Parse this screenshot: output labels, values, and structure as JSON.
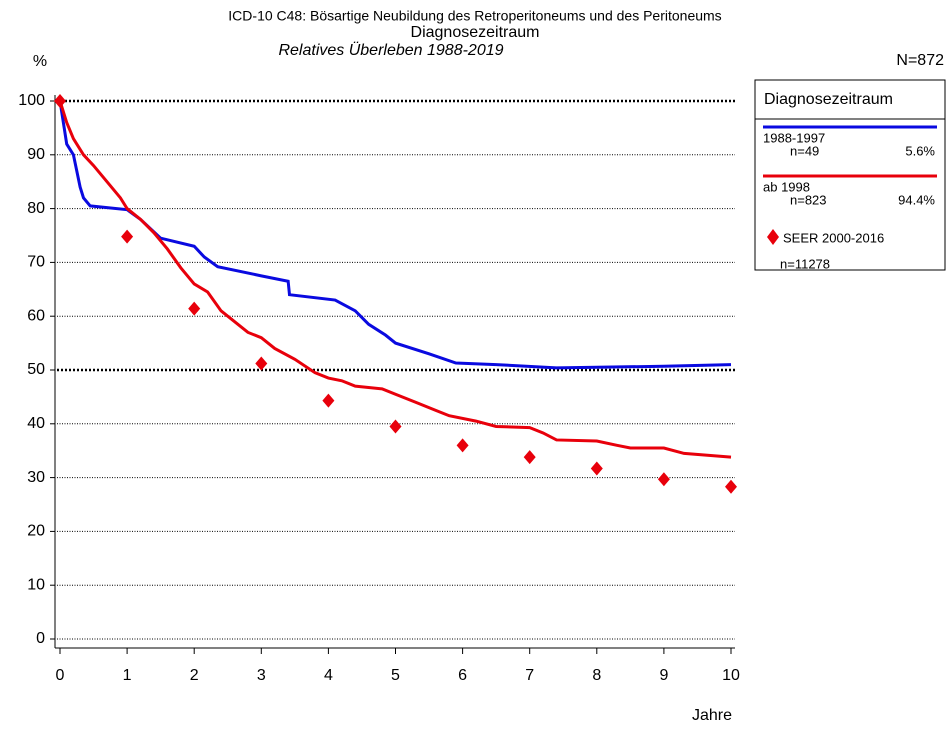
{
  "chart_data": {
    "type": "line",
    "title": "ICD-10 C48: Bösartige Neubildung des Retroperitoneums und des Peritoneums",
    "subtitle": "Diagnosezeitraum",
    "subtitle2": "Relatives Überleben 1988-2019",
    "total": "N=872",
    "ylabel": "%",
    "xlabel": "Jahre",
    "legend_title": "Diagnosezeitraum",
    "xlim": [
      0,
      10
    ],
    "ylim": [
      0,
      100
    ],
    "xticks": [
      0,
      1,
      2,
      3,
      4,
      5,
      6,
      7,
      8,
      9,
      10
    ],
    "yticks": [
      0,
      10,
      20,
      30,
      40,
      50,
      60,
      70,
      80,
      90,
      100
    ],
    "grid": true,
    "reference_lines": [
      50,
      100
    ],
    "series": [
      {
        "name": "1988-1997",
        "n": "n=49",
        "share": "5.6%",
        "color": "#0a0ae0",
        "x": [
          0,
          0.05,
          0.1,
          0.2,
          0.25,
          0.3,
          0.35,
          0.45,
          1.0,
          1.2,
          1.5,
          2.0,
          2.15,
          2.35,
          3.0,
          3.4,
          3.42,
          4.1,
          4.4,
          4.6,
          4.85,
          5.0,
          5.5,
          5.9,
          6.5,
          7.4,
          8.0,
          9.0,
          10
        ],
        "values": [
          100,
          96,
          92,
          90,
          87,
          84,
          82,
          80.5,
          79.8,
          78,
          74.5,
          73,
          71,
          69.2,
          67.5,
          66.5,
          64,
          63,
          61,
          58.5,
          56.5,
          55,
          53,
          51.3,
          51,
          50.4,
          50.5,
          50.7,
          51
        ]
      },
      {
        "name": "ab 1998",
        "n": "n=823",
        "share": "94.4%",
        "color": "#e8000b",
        "x": [
          0,
          0.1,
          0.2,
          0.35,
          0.5,
          0.7,
          0.9,
          1.0,
          1.2,
          1.4,
          1.6,
          1.8,
          2.0,
          2.2,
          2.4,
          2.6,
          2.8,
          3.0,
          3.2,
          3.5,
          3.8,
          4.0,
          4.2,
          4.4,
          4.8,
          5.0,
          5.3,
          5.6,
          5.8,
          6.2,
          6.5,
          7.0,
          7.2,
          7.4,
          8.0,
          8.3,
          8.5,
          9.0,
          9.3,
          10
        ],
        "values": [
          100,
          96,
          93,
          90,
          88,
          85,
          82,
          80,
          78,
          75.5,
          72.5,
          69,
          66,
          64.5,
          61,
          59,
          57,
          56,
          54,
          52,
          49.5,
          48.5,
          48,
          47,
          46.5,
          45.5,
          44,
          42.5,
          41.5,
          40.5,
          39.5,
          39.3,
          38.3,
          37,
          36.8,
          36,
          35.5,
          35.5,
          34.5,
          33.8
        ]
      },
      {
        "name": "SEER 2000-2016",
        "n": "n=11278",
        "type": "scatter",
        "marker": "diamond",
        "color": "#e8000b",
        "x": [
          0,
          1,
          2,
          3,
          4,
          5,
          6,
          7,
          8,
          9,
          10
        ],
        "values": [
          100,
          74.8,
          61.4,
          51.2,
          44.3,
          39.5,
          36,
          33.8,
          31.7,
          29.7,
          28.3
        ]
      }
    ]
  }
}
